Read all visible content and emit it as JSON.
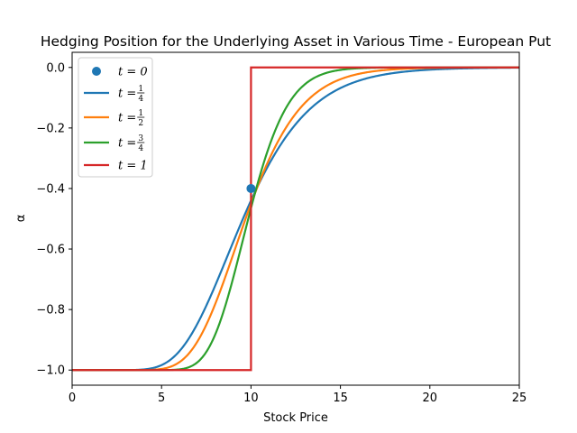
{
  "chart_data": {
    "type": "line",
    "title": "Hedging Position for the Underlying Asset in Various Time - European Put",
    "xlabel": "Stock Price",
    "ylabel": "α",
    "xlim": [
      0,
      25
    ],
    "ylim": [
      -1.05,
      0.05
    ],
    "xticks": [
      0,
      5,
      10,
      15,
      20,
      25
    ],
    "xtick_labels": [
      "0",
      "5",
      "10",
      "15",
      "20",
      "25"
    ],
    "yticks": [
      0.0,
      -0.2,
      -0.4,
      -0.6,
      -0.8,
      -1.0
    ],
    "ytick_labels": [
      "0.0",
      "−0.2",
      "−0.4",
      "−0.6",
      "−0.8",
      "−1.0"
    ],
    "grid": false,
    "legend_position": "top-left",
    "strike": 10,
    "series": [
      {
        "name": "t = 0",
        "type": "point",
        "color": "#1f77b4",
        "x": [
          10
        ],
        "y": [
          -0.4
        ]
      },
      {
        "name": "t = 1/4",
        "type": "line",
        "color": "#1f77b4",
        "tau": 0.75
      },
      {
        "name": "t = 1/2",
        "type": "line",
        "color": "#ff7f0e",
        "tau": 0.5
      },
      {
        "name": "t = 3/4",
        "type": "line",
        "color": "#2ca02c",
        "tau": 0.25
      },
      {
        "name": "t = 1",
        "type": "step",
        "color": "#d62728",
        "x": [
          0,
          10,
          10,
          25
        ],
        "y": [
          -1,
          -1,
          0,
          0
        ]
      }
    ],
    "legend": [
      {
        "label_main": "t = 0",
        "frac": ""
      },
      {
        "label_main": "t = ",
        "frac_num": "1",
        "frac_den": "4"
      },
      {
        "label_main": "t = ",
        "frac_num": "1",
        "frac_den": "2"
      },
      {
        "label_main": "t = ",
        "frac_num": "3",
        "frac_den": "4"
      },
      {
        "label_main": "t = 1",
        "frac": ""
      }
    ]
  }
}
